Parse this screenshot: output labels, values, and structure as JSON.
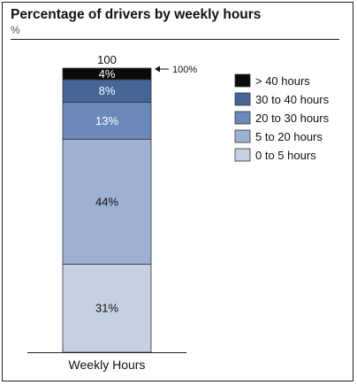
{
  "chart_data": {
    "type": "bar",
    "stacked": true,
    "title": "Percentage of drivers by weekly hours",
    "subtitle": "%",
    "categories": [
      "Weekly Hours"
    ],
    "total_label": "100",
    "annotation": "100%",
    "ylim": [
      0,
      100
    ],
    "series": [
      {
        "name": "0 to 5 hours",
        "values": [
          31
        ],
        "label": "31%",
        "color": "#c6d0e2",
        "text_color": "#111111"
      },
      {
        "name": "5 to 20 hours",
        "values": [
          44
        ],
        "label": "44%",
        "color": "#9fb1d2",
        "text_color": "#111111"
      },
      {
        "name": "20 to 30 hours",
        "values": [
          13
        ],
        "label": "13%",
        "color": "#6b89bb",
        "text_color": "#ffffff"
      },
      {
        "name": "30 to 40 hours",
        "values": [
          8
        ],
        "label": "8%",
        "color": "#456697",
        "text_color": "#ffffff"
      },
      {
        "name": "> 40 hours",
        "values": [
          4
        ],
        "label": "4%",
        "color": "#0a0a0a",
        "text_color": "#ffffff"
      }
    ],
    "legend_order": [
      "> 40 hours",
      "30 to 40 hours",
      "20 to 30 hours",
      "5 to 20 hours",
      "0 to 5 hours"
    ],
    "legend_position": "top-right"
  }
}
